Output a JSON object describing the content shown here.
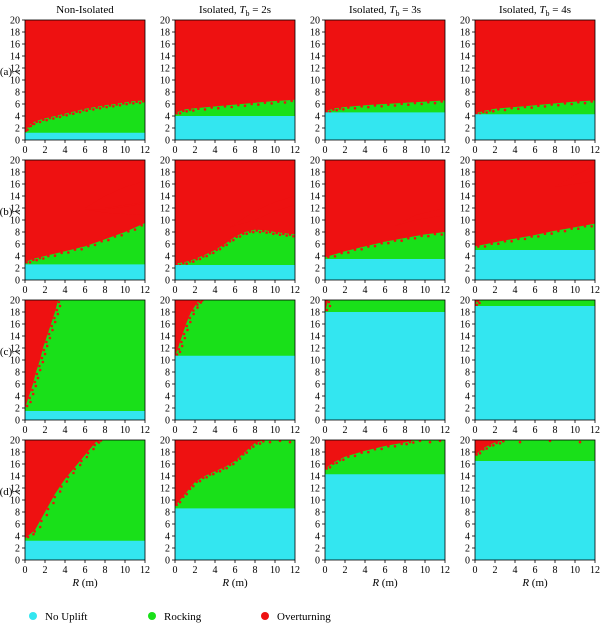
{
  "colors": {
    "no_uplift": "#33E6F0",
    "rocking": "#19E019",
    "overturning": "#EE1111"
  },
  "columns": [
    {
      "prefix": "Non-Isolated",
      "tb": ""
    },
    {
      "prefix": "Isolated, ",
      "tb": "2s"
    },
    {
      "prefix": "Isolated, ",
      "tb": "3s"
    },
    {
      "prefix": "Isolated, ",
      "tb": "4s"
    }
  ],
  "rows": [
    "(a)",
    "(b)",
    "(c)",
    "(d)"
  ],
  "tb_symbol": "T",
  "tb_subscript": "b",
  "tb_equals": " = ",
  "ylabel": "λ",
  "xlabel_var": "R",
  "xlabel_unit": " (m)",
  "legend": [
    {
      "label": "No Uplift",
      "color_key": "no_uplift"
    },
    {
      "label": "Rocking",
      "color_key": "rocking"
    },
    {
      "label": "Overturning",
      "color_key": "overturning"
    }
  ],
  "chart_data": {
    "type": "heatmap",
    "description_of_regions": "Each panel is a region map over R (m) and λ, showing No Uplift / Rocking / Overturning zones.",
    "xlim": [
      0,
      12
    ],
    "ylim": [
      0,
      20
    ],
    "xticks": [
      0,
      2,
      4,
      6,
      8,
      10,
      12
    ],
    "yticks": [
      0,
      2,
      4,
      6,
      8,
      10,
      12,
      14,
      16,
      18,
      20
    ],
    "panels": [
      {
        "row": "(a)",
        "col": "Non-Isolated",
        "no_uplift_top": [
          [
            0,
            1.2
          ],
          [
            12,
            1.2
          ]
        ],
        "rocking_top": [
          [
            0,
            1.5
          ],
          [
            0.5,
            2.6
          ],
          [
            1,
            3.1
          ],
          [
            2,
            3.6
          ],
          [
            3,
            4.0
          ],
          [
            4,
            4.4
          ],
          [
            5,
            4.8
          ],
          [
            6,
            5.2
          ],
          [
            7,
            5.5
          ],
          [
            8,
            5.8
          ],
          [
            9,
            6.0
          ],
          [
            10,
            6.3
          ],
          [
            11,
            6.5
          ],
          [
            12,
            6.6
          ]
        ],
        "overturning_bands": []
      },
      {
        "row": "(a)",
        "col": "Isolated, Tb = 2s",
        "no_uplift_top": [
          [
            0,
            4.0
          ],
          [
            12,
            4.0
          ]
        ],
        "rocking_top": [
          [
            0,
            4.5
          ],
          [
            1,
            5.1
          ],
          [
            2,
            5.3
          ],
          [
            4,
            5.6
          ],
          [
            6,
            5.9
          ],
          [
            8,
            6.2
          ],
          [
            10,
            6.5
          ],
          [
            12,
            6.7
          ]
        ],
        "overturning_bands": []
      },
      {
        "row": "(a)",
        "col": "Isolated, Tb = 3s",
        "no_uplift_top": [
          [
            0,
            4.6
          ],
          [
            12,
            4.6
          ]
        ],
        "rocking_top": [
          [
            0,
            4.8
          ],
          [
            1,
            5.3
          ],
          [
            2,
            5.5
          ],
          [
            4,
            5.8
          ],
          [
            6,
            6.0
          ],
          [
            8,
            6.2
          ],
          [
            10,
            6.4
          ],
          [
            12,
            6.6
          ]
        ],
        "overturning_bands": []
      },
      {
        "row": "(a)",
        "col": "Isolated, Tb = 4s",
        "no_uplift_top": [
          [
            0,
            4.3
          ],
          [
            12,
            4.3
          ]
        ],
        "rocking_top": [
          [
            0,
            4.4
          ],
          [
            1,
            4.9
          ],
          [
            2,
            5.2
          ],
          [
            4,
            5.5
          ],
          [
            6,
            5.8
          ],
          [
            8,
            6.1
          ],
          [
            10,
            6.4
          ],
          [
            12,
            6.6
          ]
        ],
        "overturning_bands": []
      },
      {
        "row": "(b)",
        "col": "Non-Isolated",
        "no_uplift_top": [
          [
            0,
            2.6
          ],
          [
            12,
            2.6
          ]
        ],
        "rocking_top": [
          [
            0,
            3.0
          ],
          [
            1,
            3.6
          ],
          [
            2,
            4.0
          ],
          [
            4,
            4.8
          ],
          [
            6,
            5.6
          ],
          [
            8,
            6.8
          ],
          [
            10,
            8.0
          ],
          [
            12,
            9.5
          ]
        ],
        "overturning_bands": [
          {
            "lower": [
              [
                6,
                12
              ],
              [
                8,
                12
              ],
              [
                10,
                12.5
              ],
              [
                12,
                13
              ]
            ],
            "upper": [
              [
                6,
                12
              ],
              [
                8,
                14
              ],
              [
                10,
                15.5
              ],
              [
                12,
                16.5
              ]
            ]
          },
          {
            "lower": [
              [
                6,
                11.8
              ],
              [
                8,
                11.2
              ],
              [
                10,
                11.0
              ],
              [
                12,
                10.8
              ]
            ],
            "upper": [
              [
                6,
                11.8
              ],
              [
                8,
                11.8
              ],
              [
                10,
                12.2
              ],
              [
                12,
                12.8
              ]
            ]
          }
        ]
      },
      {
        "row": "(b)",
        "col": "Isolated, Tb = 2s",
        "no_uplift_top": [
          [
            0,
            2.5
          ],
          [
            12,
            2.5
          ]
        ],
        "rocking_top": [
          [
            0,
            2.7
          ],
          [
            1,
            3.0
          ],
          [
            2,
            3.5
          ],
          [
            3,
            4.2
          ],
          [
            4,
            5.0
          ],
          [
            5,
            6.0
          ],
          [
            6,
            7.2
          ],
          [
            7,
            8.0
          ],
          [
            8,
            8.4
          ],
          [
            9,
            8.3
          ],
          [
            10,
            8.0
          ],
          [
            11,
            7.8
          ],
          [
            12,
            7.6
          ]
        ],
        "overturning_bands": [
          {
            "lower": [
              [
                5.5,
                8.8
              ],
              [
                8,
                10
              ],
              [
                10,
                11.5
              ],
              [
                12,
                12.5
              ]
            ],
            "upper": [
              [
                5.5,
                8.8
              ],
              [
                8,
                11.5
              ],
              [
                10,
                13
              ],
              [
                12,
                14
              ]
            ]
          }
        ]
      },
      {
        "row": "(b)",
        "col": "Isolated, Tb = 3s",
        "no_uplift_top": [
          [
            0,
            3.5
          ],
          [
            12,
            3.5
          ]
        ],
        "rocking_top": [
          [
            0,
            3.8
          ],
          [
            2,
            4.8
          ],
          [
            4,
            5.6
          ],
          [
            6,
            6.4
          ],
          [
            8,
            7.0
          ],
          [
            10,
            7.6
          ],
          [
            12,
            8.0
          ]
        ],
        "overturning_bands": [
          {
            "lower": [
              [
                7,
                9
              ],
              [
                9,
                10
              ],
              [
                12,
                10.8
              ]
            ],
            "upper": [
              [
                7,
                9
              ],
              [
                9,
                10.8
              ],
              [
                12,
                12
              ]
            ]
          }
        ]
      },
      {
        "row": "(b)",
        "col": "Isolated, Tb = 4s",
        "no_uplift_top": [
          [
            0,
            5.0
          ],
          [
            12,
            5.0
          ]
        ],
        "rocking_top": [
          [
            0,
            5.6
          ],
          [
            2,
            6.3
          ],
          [
            4,
            6.9
          ],
          [
            6,
            7.5
          ],
          [
            8,
            8.2
          ],
          [
            10,
            8.8
          ],
          [
            12,
            9.4
          ]
        ],
        "overturning_bands": [
          {
            "lower": [
              [
                8,
                15.5
              ],
              [
                10,
                16
              ],
              [
                12,
                16.5
              ]
            ],
            "upper": [
              [
                8,
                15.5
              ],
              [
                10,
                17.5
              ],
              [
                12,
                19
              ]
            ]
          }
        ]
      },
      {
        "row": "(c)",
        "col": "Non-Isolated",
        "no_uplift_top": [
          [
            0,
            1.5
          ],
          [
            12,
            1.5
          ]
        ],
        "rocking_top": [
          [
            0,
            2.0
          ],
          [
            0.4,
            4
          ],
          [
            0.8,
            6
          ],
          [
            1.1,
            8
          ],
          [
            1.5,
            10
          ],
          [
            1.8,
            12
          ],
          [
            2.2,
            14
          ],
          [
            2.6,
            16
          ],
          [
            3.0,
            18
          ],
          [
            3.3,
            20
          ]
        ],
        "rocking_top_is_boundary_vertical": true,
        "overturning_bands": []
      },
      {
        "row": "(c)",
        "col": "Isolated, Tb = 2s",
        "no_uplift_top": [
          [
            0,
            10.7
          ],
          [
            12,
            10.7
          ]
        ],
        "rocking_top": [
          [
            0,
            10.7
          ],
          [
            0.3,
            12
          ],
          [
            0.7,
            14
          ],
          [
            1.1,
            16
          ],
          [
            1.6,
            18
          ],
          [
            2.2,
            19.5
          ],
          [
            2.4,
            20
          ]
        ],
        "rocking_top_is_boundary_vertical": true,
        "overturning_bands": []
      },
      {
        "row": "(c)",
        "col": "Isolated, Tb = 3s",
        "no_uplift_top": [
          [
            0,
            18.0
          ],
          [
            12,
            18.0
          ]
        ],
        "rocking_top": [
          [
            0,
            18
          ],
          [
            0.3,
            20
          ]
        ],
        "rocking_top_is_boundary_vertical": true,
        "overturning_bands": []
      },
      {
        "row": "(c)",
        "col": "Isolated, Tb = 4s",
        "no_uplift_top": [
          [
            0,
            19.0
          ],
          [
            12,
            19.0
          ]
        ],
        "rocking_top": [
          [
            0,
            19
          ],
          [
            0.2,
            20
          ]
        ],
        "rocking_top_is_boundary_vertical": true,
        "overturning_bands": []
      },
      {
        "row": "(d)",
        "col": "Non-Isolated",
        "no_uplift_top": [
          [
            0,
            3.2
          ],
          [
            12,
            3.2
          ]
        ],
        "rocking_top": [
          [
            0,
            3.6
          ],
          [
            1,
            5
          ],
          [
            2,
            8
          ],
          [
            3,
            11
          ],
          [
            4,
            13.5
          ],
          [
            5,
            15.5
          ],
          [
            6,
            17.5
          ],
          [
            7,
            19.5
          ],
          [
            7.3,
            20
          ]
        ],
        "rocking_top_is_boundary_vertical": true,
        "overturning_bands": []
      },
      {
        "row": "(d)",
        "col": "Isolated, Tb = 2s",
        "no_uplift_top": [
          [
            0,
            8.6
          ],
          [
            12,
            8.6
          ]
        ],
        "rocking_top": [
          [
            0,
            9.0
          ],
          [
            1,
            11
          ],
          [
            2,
            13
          ],
          [
            3,
            14
          ],
          [
            4,
            14.8
          ],
          [
            5,
            15.5
          ],
          [
            6,
            16.5
          ],
          [
            7,
            18
          ],
          [
            8,
            19.5
          ],
          [
            9,
            20
          ],
          [
            12,
            20
          ]
        ],
        "overturning_bands": []
      },
      {
        "row": "(d)",
        "col": "Isolated, Tb = 3s",
        "no_uplift_top": [
          [
            0,
            14.3
          ],
          [
            12,
            14.3
          ]
        ],
        "rocking_top": [
          [
            0,
            15.2
          ],
          [
            1,
            16.4
          ],
          [
            2,
            17.2
          ],
          [
            4,
            18.2
          ],
          [
            6,
            19.0
          ],
          [
            8,
            19.6
          ],
          [
            9,
            20
          ],
          [
            12,
            20
          ]
        ],
        "overturning_bands": []
      },
      {
        "row": "(d)",
        "col": "Isolated, Tb = 4s",
        "no_uplift_top": [
          [
            0,
            16.5
          ],
          [
            12,
            16.5
          ]
        ],
        "rocking_top": [
          [
            0,
            17.5
          ],
          [
            1,
            18.8
          ],
          [
            2,
            19.6
          ],
          [
            3,
            20
          ],
          [
            12,
            20
          ]
        ],
        "overturning_bands": []
      }
    ]
  }
}
